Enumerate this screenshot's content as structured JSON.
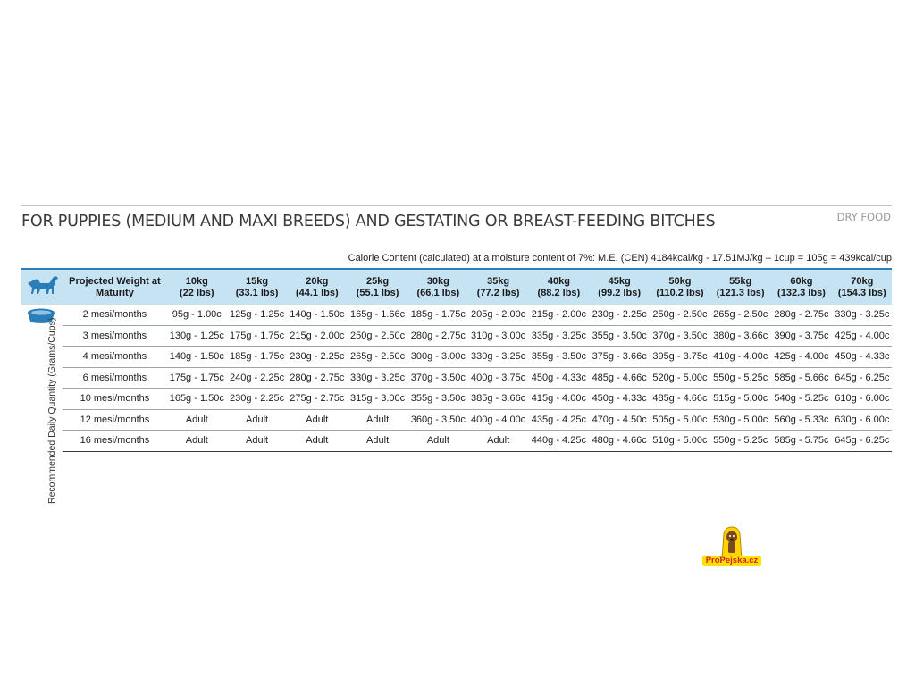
{
  "title": "FOR PUPPIES (MEDIUM AND MAXI BREEDS) AND GESTATING OR BREAST-FEEDING BITCHES",
  "category": "DRY FOOD",
  "calorie_note": "Calorie Content (calculated) at a moisture content of 7%: M.E. (CEN) 4184kcal/kg - 17.51MJ/kg – 1cup = 105g = 439kcal/cup",
  "table": {
    "projected_label": "Projected Weight at Maturity",
    "side_label": "Recommended Daily Quantity (Grams/Cups)",
    "weights": [
      {
        "kg": "10kg",
        "lbs": "(22 lbs)"
      },
      {
        "kg": "15kg",
        "lbs": "(33.1 lbs)"
      },
      {
        "kg": "20kg",
        "lbs": "(44.1 lbs)"
      },
      {
        "kg": "25kg",
        "lbs": "(55.1 lbs)"
      },
      {
        "kg": "30kg",
        "lbs": "(66.1 lbs)"
      },
      {
        "kg": "35kg",
        "lbs": "(77.2 lbs)"
      },
      {
        "kg": "40kg",
        "lbs": "(88.2 lbs)"
      },
      {
        "kg": "45kg",
        "lbs": "(99.2 lbs)"
      },
      {
        "kg": "50kg",
        "lbs": "(110.2 lbs)"
      },
      {
        "kg": "55kg",
        "lbs": "(121.3 lbs)"
      },
      {
        "kg": "60kg",
        "lbs": "(132.3 lbs)"
      },
      {
        "kg": "70kg",
        "lbs": "(154.3 lbs)"
      }
    ],
    "rows": [
      {
        "age": "2 mesi/months",
        "cells": [
          "95g - 1.00c",
          "125g - 1.25c",
          "140g - 1.50c",
          "165g - 1.66c",
          "185g - 1.75c",
          "205g - 2.00c",
          "215g - 2.00c",
          "230g - 2.25c",
          "250g - 2.50c",
          "265g - 2.50c",
          "280g - 2.75c",
          "330g - 3.25c"
        ]
      },
      {
        "age": "3 mesi/months",
        "cells": [
          "130g - 1.25c",
          "175g - 1.75c",
          "215g - 2.00c",
          "250g - 2.50c",
          "280g - 2.75c",
          "310g - 3.00c",
          "335g - 3.25c",
          "355g - 3.50c",
          "370g - 3.50c",
          "380g - 3.66c",
          "390g - 3.75c",
          "425g - 4.00c"
        ]
      },
      {
        "age": "4 mesi/months",
        "cells": [
          "140g - 1.50c",
          "185g - 1.75c",
          "230g - 2.25c",
          "265g - 2.50c",
          "300g - 3.00c",
          "330g - 3.25c",
          "355g - 3.50c",
          "375g - 3.66c",
          "395g - 3.75c",
          "410g - 4.00c",
          "425g - 4.00c",
          "450g - 4.33c"
        ]
      },
      {
        "age": "6 mesi/months",
        "cells": [
          "175g - 1.75c",
          "240g - 2.25c",
          "280g - 2.75c",
          "330g - 3.25c",
          "370g - 3.50c",
          "400g - 3.75c",
          "450g - 4.33c",
          "485g - 4.66c",
          "520g - 5.00c",
          "550g - 5.25c",
          "585g - 5.66c",
          "645g - 6.25c"
        ]
      },
      {
        "age": "10 mesi/months",
        "cells": [
          "165g - 1.50c",
          "230g - 2.25c",
          "275g - 2.75c",
          "315g - 3.00c",
          "355g - 3.50c",
          "385g - 3.66c",
          "415g - 4.00c",
          "450g - 4.33c",
          "485g - 4.66c",
          "515g - 5.00c",
          "540g - 5.25c",
          "610g - 6.00c"
        ]
      },
      {
        "age": "12 mesi/months",
        "cells": [
          "Adult",
          "Adult",
          "Adult",
          "Adult",
          "360g - 3.50c",
          "400g - 4.00c",
          "435g - 4.25c",
          "470g - 4.50c",
          "505g - 5.00c",
          "530g - 5.00c",
          "560g - 5.33c",
          "630g - 6.00c"
        ]
      },
      {
        "age": "16 mesi/months",
        "cells": [
          "Adult",
          "Adult",
          "Adult",
          "Adult",
          "Adult",
          "Adult",
          "440g - 4.25c",
          "480g - 4.66c",
          "510g - 5.00c",
          "550g - 5.25c",
          "585g - 5.75c",
          "645g - 6.25c"
        ]
      }
    ]
  },
  "logo": {
    "text": "ProPejska.cz"
  },
  "icons": {
    "dog": "dog-silhouette-icon",
    "bowl": "food-bowl-icon"
  },
  "colors": {
    "header_bg": "#c6e3f3",
    "accent": "#2a7fb8",
    "icon": "#2a7fb8",
    "logo_red": "#d81f26",
    "logo_yellow": "#ffe100"
  }
}
